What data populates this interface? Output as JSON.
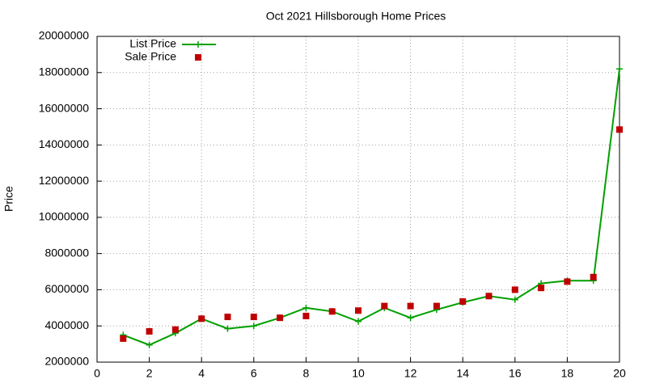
{
  "chart_data": {
    "type": "line",
    "title": "Oct 2021 Hillsborough Home Prices",
    "y_label": "Price",
    "x": [
      1,
      2,
      3,
      4,
      5,
      6,
      7,
      8,
      9,
      10,
      11,
      12,
      13,
      14,
      15,
      16,
      17,
      18,
      19,
      20
    ],
    "series": [
      {
        "name": "List Price",
        "color": "#00a000",
        "style": "line-points",
        "values": [
          3500000,
          2950000,
          3600000,
          4400000,
          3850000,
          4000000,
          4450000,
          5000000,
          4800000,
          4250000,
          5000000,
          4450000,
          4900000,
          5300000,
          5650000,
          5450000,
          6350000,
          6500000,
          6500000,
          18200000
        ]
      },
      {
        "name": "Sale Price",
        "color": "#c00000",
        "style": "points",
        "values": [
          3300000,
          3700000,
          3800000,
          4400000,
          4500000,
          4500000,
          4450000,
          4550000,
          4800000,
          4850000,
          5100000,
          5100000,
          5100000,
          5350000,
          5650000,
          6000000,
          6100000,
          6450000,
          6700000,
          14850000
        ]
      }
    ],
    "xlim": [
      0,
      20
    ],
    "xticks": [
      0,
      2,
      4,
      6,
      8,
      10,
      12,
      14,
      16,
      18,
      20
    ],
    "ylim": [
      2000000,
      20000000
    ],
    "yticks": [
      2000000,
      4000000,
      6000000,
      8000000,
      10000000,
      12000000,
      14000000,
      16000000,
      18000000,
      20000000
    ],
    "grid": true,
    "legend": "top-left"
  }
}
